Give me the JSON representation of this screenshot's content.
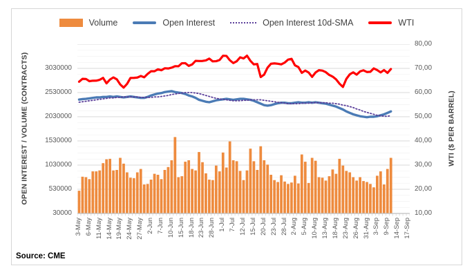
{
  "legend": {
    "items": [
      {
        "label": "Volume",
        "swatch": "orange-bar",
        "color": "#ee8b3e"
      },
      {
        "label": "Open Interest",
        "swatch": "blue-line",
        "color": "#4b7bb5"
      },
      {
        "label": "Open Interest 10d-SMA",
        "swatch": "purple-dotted-line",
        "color": "#5a3e99"
      },
      {
        "label": "WTI",
        "swatch": "red-line",
        "color": "#ff0000"
      }
    ]
  },
  "source_note": "Source: CME",
  "colors": {
    "volume_bar": "#ee8b3e",
    "open_interest_line": "#4b7bb5",
    "sma_dotted_line": "#5a3e99",
    "wti_line": "#ff0000",
    "gridline_major": "#d9d9d9",
    "gridline_minor": "#f2f2f2",
    "axis_line": "#bfbfbf",
    "tick_text": "#595959"
  },
  "chart_data": {
    "type": "combo-bar-line",
    "grid": "horizontal-major-and-minor",
    "legend_position": "top",
    "total_slots": 97,
    "label_every_n_slots": 3,
    "x_tick_labels": [
      "3-May",
      "6-May",
      "11-May",
      "14-May",
      "19-May",
      "24-May",
      "27-May",
      "2-Jun",
      "7-Jun",
      "10-Jun",
      "15-Jun",
      "18-Jun",
      "23-Jun",
      "28-Jun",
      "1-Jul",
      "7-Jul",
      "12-Jul",
      "15-Jul",
      "20-Jul",
      "23-Jul",
      "28-Jul",
      "2-Aug",
      "5-Aug",
      "10-Aug",
      "13-Aug",
      "18-Aug",
      "23-Aug",
      "26-Aug",
      "31-Aug",
      "3-Sep",
      "9-Sep",
      "14-Sep",
      "17-Sep"
    ],
    "x": [
      "3-May",
      "4-May",
      "5-May",
      "6-May",
      "7-May",
      "10-May",
      "11-May",
      "12-May",
      "13-May",
      "14-May",
      "17-May",
      "18-May",
      "19-May",
      "20-May",
      "21-May",
      "24-May",
      "25-May",
      "26-May",
      "27-May",
      "28-May",
      "1-Jun",
      "2-Jun",
      "3-Jun",
      "4-Jun",
      "7-Jun",
      "8-Jun",
      "9-Jun",
      "10-Jun",
      "11-Jun",
      "14-Jun",
      "15-Jun",
      "16-Jun",
      "17-Jun",
      "18-Jun",
      "21-Jun",
      "22-Jun",
      "23-Jun",
      "24-Jun",
      "25-Jun",
      "28-Jun",
      "29-Jun",
      "30-Jun",
      "1-Jul",
      "2-Jul",
      "6-Jul",
      "7-Jul",
      "8-Jul",
      "9-Jul",
      "12-Jul",
      "13-Jul",
      "14-Jul",
      "15-Jul",
      "16-Jul",
      "19-Jul",
      "20-Jul",
      "21-Jul",
      "22-Jul",
      "23-Jul",
      "26-Jul",
      "27-Jul",
      "28-Jul",
      "29-Jul",
      "30-Jul",
      "2-Aug",
      "3-Aug",
      "4-Aug",
      "5-Aug",
      "6-Aug",
      "9-Aug",
      "10-Aug",
      "11-Aug",
      "12-Aug",
      "13-Aug",
      "16-Aug",
      "17-Aug",
      "18-Aug",
      "19-Aug",
      "20-Aug",
      "23-Aug",
      "24-Aug",
      "25-Aug",
      "26-Aug",
      "27-Aug",
      "30-Aug",
      "31-Aug",
      "1-Sep",
      "2-Sep",
      "3-Sep",
      "7-Sep",
      "8-Sep",
      "9-Sep",
      "10-Sep"
    ],
    "left_axis": {
      "title": "OPEN INTEREST / VOLUME (CONTRACTS)",
      "tick_labels": [
        "30000",
        "530000",
        "1030000",
        "1530000",
        "2030000",
        "2530000",
        "3030000"
      ],
      "tick_values": [
        30000,
        530000,
        1030000,
        1530000,
        2030000,
        2530000,
        3030000
      ],
      "range": [
        30000,
        3530000
      ]
    },
    "right_axis": {
      "title": "WTI ($ PER BARREL)",
      "tick_labels": [
        "10,00",
        "20,00",
        "30,00",
        "40,00",
        "50,00",
        "60,00",
        "70,00",
        "80,00"
      ],
      "tick_values": [
        10,
        20,
        30,
        40,
        50,
        60,
        70,
        80
      ],
      "range": [
        10,
        80
      ]
    },
    "series": [
      {
        "name": "Volume",
        "type": "bar",
        "axis": "left",
        "color": "#ee8b3e",
        "values": [
          500000,
          790000,
          780000,
          740000,
          900000,
          900000,
          920000,
          1070000,
          1150000,
          1160000,
          920000,
          930000,
          1180000,
          1060000,
          880000,
          770000,
          760000,
          880000,
          950000,
          630000,
          640000,
          730000,
          850000,
          830000,
          740000,
          930000,
          990000,
          1130000,
          1610000,
          780000,
          800000,
          1100000,
          1130000,
          950000,
          920000,
          1300000,
          1090000,
          860000,
          730000,
          720000,
          1020000,
          900000,
          1290000,
          980000,
          1520000,
          1130000,
          1110000,
          910000,
          720000,
          920000,
          1370000,
          1110000,
          930000,
          1420000,
          1130000,
          1040000,
          830000,
          720000,
          680000,
          820000,
          690000,
          640000,
          670000,
          810000,
          650000,
          1250000,
          1100000,
          660000,
          1180000,
          1120000,
          780000,
          770000,
          710000,
          800000,
          940000,
          850000,
          1160000,
          1020000,
          910000,
          880000,
          780000,
          710000,
          780000,
          700000,
          680000,
          640000,
          570000,
          810000,
          900000,
          630000,
          950000,
          1180000
        ]
      },
      {
        "name": "Open Interest",
        "type": "line",
        "axis": "left",
        "color": "#4b7bb5",
        "values": [
          2385000,
          2395000,
          2400000,
          2410000,
          2420000,
          2430000,
          2430000,
          2440000,
          2440000,
          2450000,
          2440000,
          2450000,
          2440000,
          2430000,
          2440000,
          2450000,
          2440000,
          2430000,
          2420000,
          2420000,
          2440000,
          2470000,
          2490000,
          2510000,
          2520000,
          2540000,
          2550000,
          2560000,
          2540000,
          2530000,
          2520000,
          2500000,
          2470000,
          2450000,
          2420000,
          2380000,
          2360000,
          2340000,
          2330000,
          2350000,
          2370000,
          2380000,
          2390000,
          2400000,
          2390000,
          2380000,
          2390000,
          2400000,
          2400000,
          2390000,
          2380000,
          2360000,
          2330000,
          2300000,
          2270000,
          2260000,
          2270000,
          2290000,
          2310000,
          2320000,
          2320000,
          2310000,
          2310000,
          2320000,
          2330000,
          2320000,
          2320000,
          2330000,
          2320000,
          2330000,
          2320000,
          2310000,
          2300000,
          2280000,
          2260000,
          2240000,
          2210000,
          2180000,
          2140000,
          2110000,
          2080000,
          2060000,
          2040000,
          2030000,
          2020000,
          2030000,
          2030000,
          2040000,
          2060000,
          2080000,
          2110000,
          2140000
        ]
      },
      {
        "name": "Open Interest 10d-SMA",
        "type": "dotted-line",
        "axis": "left",
        "color": "#5a3e99",
        "values": [
          2330000,
          2340000,
          2350000,
          2360000,
          2370000,
          2380000,
          2390000,
          2400000,
          2410000,
          2420000,
          2420000,
          2430000,
          2430000,
          2440000,
          2440000,
          2440000,
          2440000,
          2440000,
          2430000,
          2430000,
          2430000,
          2430000,
          2440000,
          2440000,
          2450000,
          2460000,
          2470000,
          2490000,
          2500000,
          2510000,
          2520000,
          2530000,
          2530000,
          2530000,
          2520000,
          2510000,
          2490000,
          2470000,
          2450000,
          2430000,
          2410000,
          2400000,
          2390000,
          2380000,
          2370000,
          2360000,
          2360000,
          2360000,
          2370000,
          2370000,
          2380000,
          2380000,
          2380000,
          2380000,
          2370000,
          2360000,
          2350000,
          2340000,
          2330000,
          2320000,
          2310000,
          2300000,
          2300000,
          2300000,
          2300000,
          2310000,
          2310000,
          2310000,
          2320000,
          2320000,
          2320000,
          2320000,
          2320000,
          2310000,
          2310000,
          2300000,
          2290000,
          2270000,
          2260000,
          2240000,
          2220000,
          2190000,
          2170000,
          2140000,
          2120000,
          2100000,
          2080000,
          2060000,
          2050000,
          2040000,
          2040000,
          2050000
        ]
      },
      {
        "name": "WTI",
        "type": "line",
        "axis": "right",
        "color": "#ff0000",
        "values": [
          64.49,
          65.69,
          65.63,
          64.71,
          64.9,
          64.92,
          65.28,
          66.08,
          63.82,
          65.37,
          66.27,
          65.49,
          63.36,
          62.05,
          63.58,
          66.05,
          66.07,
          66.21,
          66.85,
          66.32,
          67.72,
          68.83,
          68.81,
          69.62,
          69.23,
          70.05,
          69.96,
          70.29,
          70.91,
          70.88,
          72.12,
          72.15,
          71.04,
          71.64,
          73.12,
          73.06,
          73.08,
          73.3,
          74.05,
          72.91,
          72.98,
          73.47,
          75.23,
          75.16,
          73.37,
          72.2,
          72.94,
          74.56,
          74.1,
          75.25,
          73.13,
          71.65,
          71.81,
          66.42,
          67.42,
          70.3,
          71.91,
          72.07,
          71.91,
          71.65,
          72.39,
          73.62,
          73.95,
          71.26,
          70.56,
          68.15,
          69.09,
          68.28,
          66.48,
          68.29,
          69.25,
          69.09,
          68.44,
          67.29,
          66.59,
          65.46,
          63.69,
          62.32,
          65.64,
          67.54,
          68.36,
          67.42,
          68.74,
          69.21,
          68.5,
          68.59,
          69.99,
          69.29,
          68.35,
          69.3,
          68.14,
          69.72
        ]
      }
    ]
  }
}
